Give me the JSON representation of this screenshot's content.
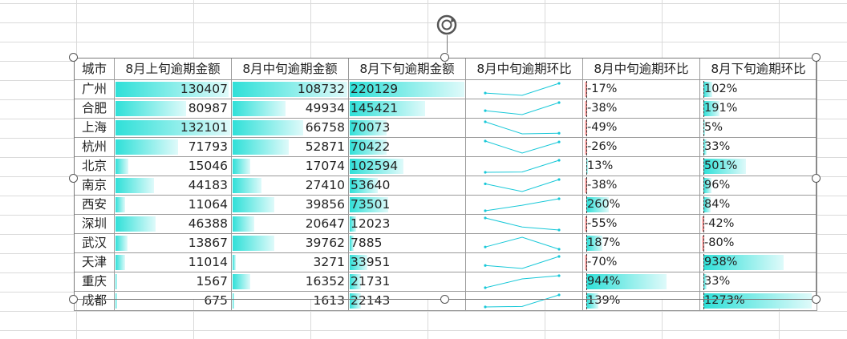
{
  "headers": [
    "城市",
    "8月上旬逾期金额",
    "8月中旬逾期金额",
    "8月下旬逾期金额",
    "8月中旬逾期环比",
    "8月中旬逾期环比",
    "8月下旬逾期环比"
  ],
  "rows": [
    {
      "city": "广州",
      "early": "130407",
      "mid": "108732",
      "late": "220129",
      "mid_pct": "-17%",
      "late_pct": "102%",
      "mid_val": -17,
      "late_val": 102
    },
    {
      "city": "合肥",
      "early": "80987",
      "mid": "49934",
      "late": "145421",
      "mid_pct": "-38%",
      "late_pct": "191%",
      "mid_val": -38,
      "late_val": 191
    },
    {
      "city": "上海",
      "early": "132101",
      "mid": "66758",
      "late": "70073",
      "mid_pct": "-49%",
      "late_pct": "5%",
      "mid_val": -49,
      "late_val": 5
    },
    {
      "city": "杭州",
      "early": "71793",
      "mid": "52871",
      "late": "70422",
      "mid_pct": "-26%",
      "late_pct": "33%",
      "mid_val": -26,
      "late_val": 33
    },
    {
      "city": "北京",
      "early": "15046",
      "mid": "17074",
      "late": "102594",
      "mid_pct": "13%",
      "late_pct": "501%",
      "mid_val": 13,
      "late_val": 501
    },
    {
      "city": "南京",
      "early": "44183",
      "mid": "27410",
      "late": "53640",
      "mid_pct": "-38%",
      "late_pct": "96%",
      "mid_val": -38,
      "late_val": 96
    },
    {
      "city": "西安",
      "early": "11064",
      "mid": "39856",
      "late": "73501",
      "mid_pct": "260%",
      "late_pct": "84%",
      "mid_val": 260,
      "late_val": 84
    },
    {
      "city": "深圳",
      "early": "46388",
      "mid": "20647",
      "late": "12023",
      "mid_pct": "-55%",
      "late_pct": "-42%",
      "mid_val": -55,
      "late_val": -42
    },
    {
      "city": "武汉",
      "early": "13867",
      "mid": "39762",
      "late": "7885",
      "mid_pct": "187%",
      "late_pct": "-80%",
      "mid_val": 187,
      "late_val": -80
    },
    {
      "city": "天津",
      "early": "11014",
      "mid": "3271",
      "late": "33951",
      "mid_pct": "-70%",
      "late_pct": "938%",
      "mid_val": -70,
      "late_val": 938
    },
    {
      "city": "重庆",
      "early": "1567",
      "mid": "16352",
      "late": "21731",
      "mid_pct": "944%",
      "late_pct": "33%",
      "mid_val": 944,
      "late_val": 33
    },
    {
      "city": "成都",
      "early": "675",
      "mid": "1613",
      "late": "22143",
      "mid_pct": "139%",
      "late_pct": "1273%",
      "mid_val": 139,
      "late_val": 1273
    }
  ],
  "colors": {
    "bar": "#2fe0d8",
    "negative": "#f07070",
    "spark": "#18c8d8",
    "grid": "#dadada"
  },
  "icons": {
    "rotate": "rotate-handle-icon"
  }
}
